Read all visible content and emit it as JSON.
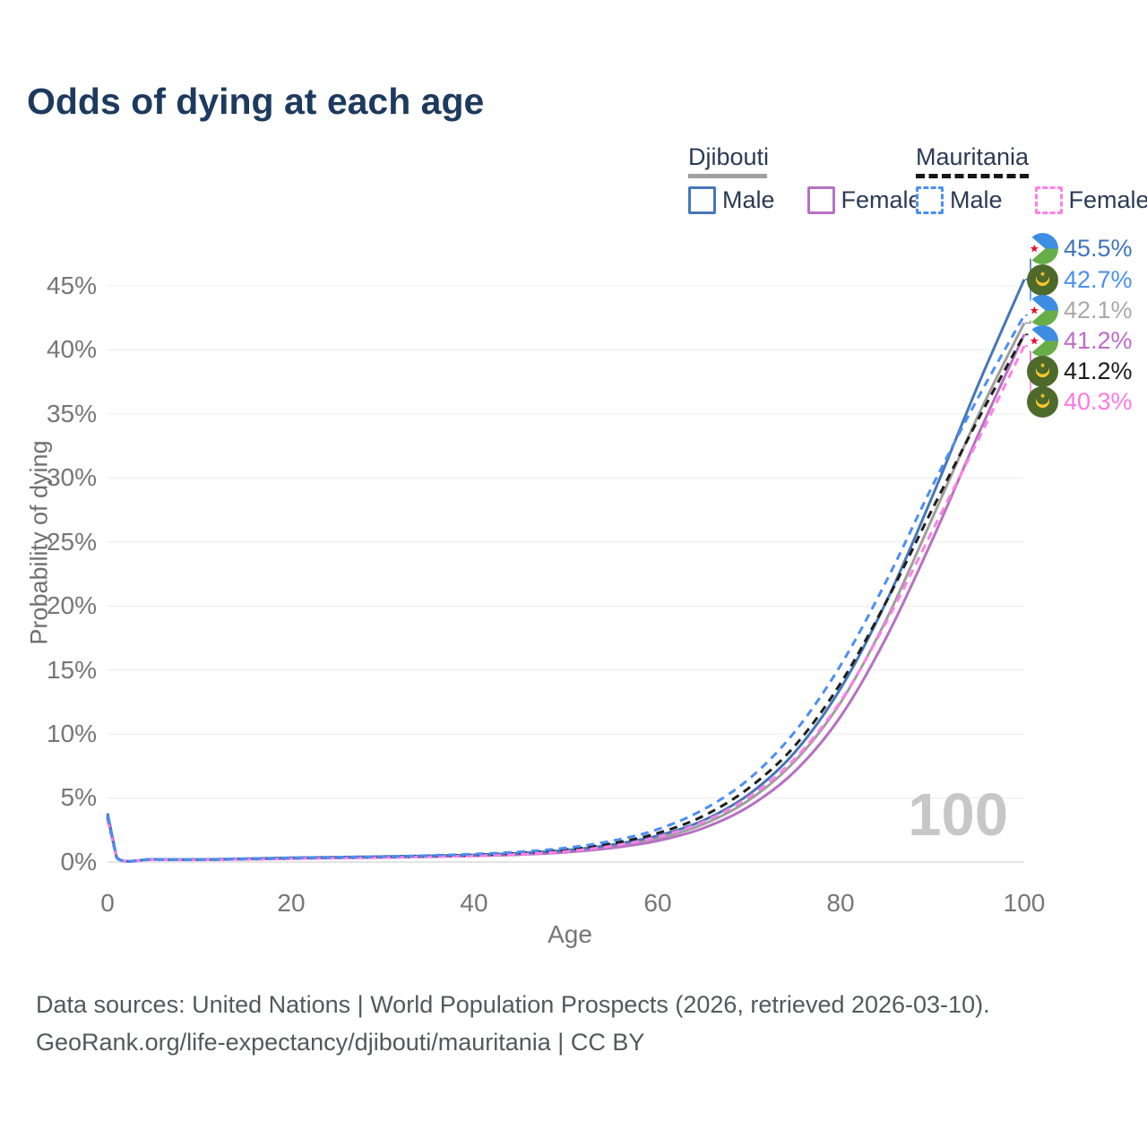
{
  "title": "Odds of dying at each age",
  "legend": {
    "groups": [
      {
        "country": "Djibouti",
        "style": "solid",
        "items": [
          {
            "label": "Male"
          },
          {
            "label": "Female"
          }
        ]
      },
      {
        "country": "Mauritania",
        "style": "dashed",
        "items": [
          {
            "label": "Male"
          },
          {
            "label": "Female"
          }
        ]
      }
    ]
  },
  "footer": {
    "line1": "Data sources: United Nations | World Population Prospects (2026, retrieved 2026-03-10).",
    "line2": "GeoRank.org/life-expectancy/djibouti/mauritania | CC BY"
  },
  "chart_data": {
    "type": "line",
    "title": "Odds of dying at each age",
    "xlabel": "Age",
    "ylabel": "Probability of dying",
    "xlim": [
      0,
      100
    ],
    "ylim_pct": [
      0,
      47
    ],
    "grid": true,
    "legend_position": "top-right",
    "highlight_age_label": "100",
    "xticks": [
      "0",
      "20",
      "40",
      "60",
      "80",
      "100"
    ],
    "yticks": [
      "0%",
      "5%",
      "10%",
      "15%",
      "20%",
      "25%",
      "30%",
      "35%",
      "40%",
      "45%"
    ],
    "x": [
      0,
      1,
      5,
      10,
      15,
      20,
      25,
      30,
      35,
      40,
      45,
      50,
      55,
      60,
      65,
      70,
      75,
      80,
      85,
      90,
      95,
      100
    ],
    "series": [
      {
        "name": "Djibouti Male",
        "country": "Djibouti",
        "sex": "male",
        "dash": "solid",
        "color": "#4677b8",
        "label_color": "#4174bc",
        "flag": "djibouti",
        "end_label": "45.5%",
        "values_pct": [
          3.8,
          0.35,
          0.22,
          0.2,
          0.26,
          0.33,
          0.38,
          0.43,
          0.48,
          0.56,
          0.7,
          0.92,
          1.35,
          2.05,
          3.25,
          5.3,
          8.6,
          13.6,
          20.4,
          28.6,
          37.3,
          45.5
        ]
      },
      {
        "name": "Mauritania Male",
        "country": "Mauritania",
        "sex": "male",
        "dash": "dashed",
        "color": "#4a8ff2",
        "label_color": "#4a8ff2",
        "flag": "mauritania",
        "end_label": "42.7%",
        "values_pct": [
          3.6,
          0.33,
          0.21,
          0.19,
          0.25,
          0.31,
          0.37,
          0.43,
          0.51,
          0.62,
          0.8,
          1.1,
          1.65,
          2.55,
          4.1,
          6.5,
          10.2,
          15.4,
          22.0,
          29.4,
          36.3,
          42.7
        ]
      },
      {
        "name": "Djibouti Both sexes",
        "country": "Djibouti",
        "sex": "total",
        "dash": "solid",
        "color": "#9e9e9e",
        "label_color": "#a9a9a9",
        "flag": "djibouti",
        "end_label": "42.1%",
        "values_pct": [
          3.65,
          0.34,
          0.21,
          0.19,
          0.24,
          0.3,
          0.35,
          0.4,
          0.45,
          0.52,
          0.64,
          0.85,
          1.22,
          1.85,
          2.95,
          4.85,
          7.9,
          12.5,
          19.0,
          26.9,
          34.9,
          42.1
        ]
      },
      {
        "name": "Djibouti Female",
        "country": "Djibouti",
        "sex": "female",
        "dash": "solid",
        "color": "#b671c2",
        "label_color": "#bd6cc6",
        "flag": "djibouti",
        "end_label": "41.2%",
        "values_pct": [
          3.5,
          0.32,
          0.2,
          0.18,
          0.22,
          0.27,
          0.32,
          0.36,
          0.41,
          0.48,
          0.58,
          0.76,
          1.1,
          1.65,
          2.65,
          4.35,
          7.1,
          11.4,
          17.6,
          25.2,
          33.4,
          41.2
        ]
      },
      {
        "name": "Mauritania Both sexes",
        "country": "Mauritania",
        "sex": "total",
        "dash": "dashed",
        "color": "#1f1f1f",
        "label_color": "#1b1b1b",
        "flag": "mauritania",
        "end_label": "41.2%",
        "values_pct": [
          3.45,
          0.32,
          0.2,
          0.18,
          0.23,
          0.28,
          0.34,
          0.39,
          0.46,
          0.55,
          0.7,
          0.96,
          1.45,
          2.25,
          3.6,
          5.8,
          9.1,
          14.0,
          20.4,
          27.6,
          34.6,
          41.2
        ]
      },
      {
        "name": "Mauritania Female",
        "country": "Mauritania",
        "sex": "female",
        "dash": "dashed",
        "color": "#ff80e6",
        "label_color": "#ff78e2",
        "flag": "mauritania",
        "end_label": "40.3%",
        "values_pct": [
          3.3,
          0.3,
          0.19,
          0.17,
          0.21,
          0.26,
          0.31,
          0.35,
          0.41,
          0.49,
          0.61,
          0.83,
          1.25,
          1.95,
          3.15,
          5.1,
          8.1,
          12.6,
          18.8,
          25.9,
          33.0,
          40.3
        ]
      }
    ]
  }
}
